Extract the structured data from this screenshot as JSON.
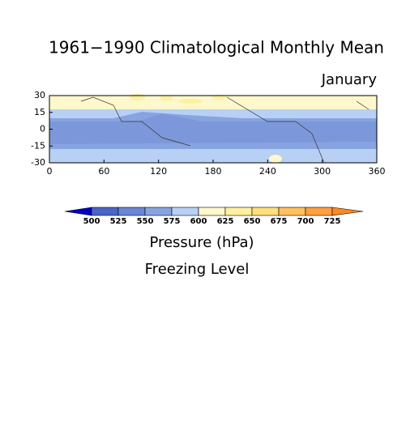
{
  "title": "1961−1990 Climatological Monthly Mean",
  "subtitle": "January",
  "map": {
    "xlim": [
      0,
      360
    ],
    "ylim": [
      -30,
      30
    ],
    "xticks": [
      0,
      60,
      120,
      180,
      240,
      300,
      360
    ],
    "yticks": [
      30,
      15,
      0,
      -15,
      -30
    ]
  },
  "colorbar": {
    "levels": [
      500,
      525,
      550,
      575,
      600,
      625,
      650,
      675,
      700,
      725
    ],
    "colors": [
      "#0000c8",
      "#4a64c8",
      "#6a86d4",
      "#88a4e0",
      "#b8d0f4",
      "#fff8cc",
      "#fff0a0",
      "#ffe07c",
      "#ffc060",
      "#ffa040",
      "#ff8820"
    ]
  },
  "units_label": "Pressure (hPa)",
  "variable_label": "Freezing Level"
}
